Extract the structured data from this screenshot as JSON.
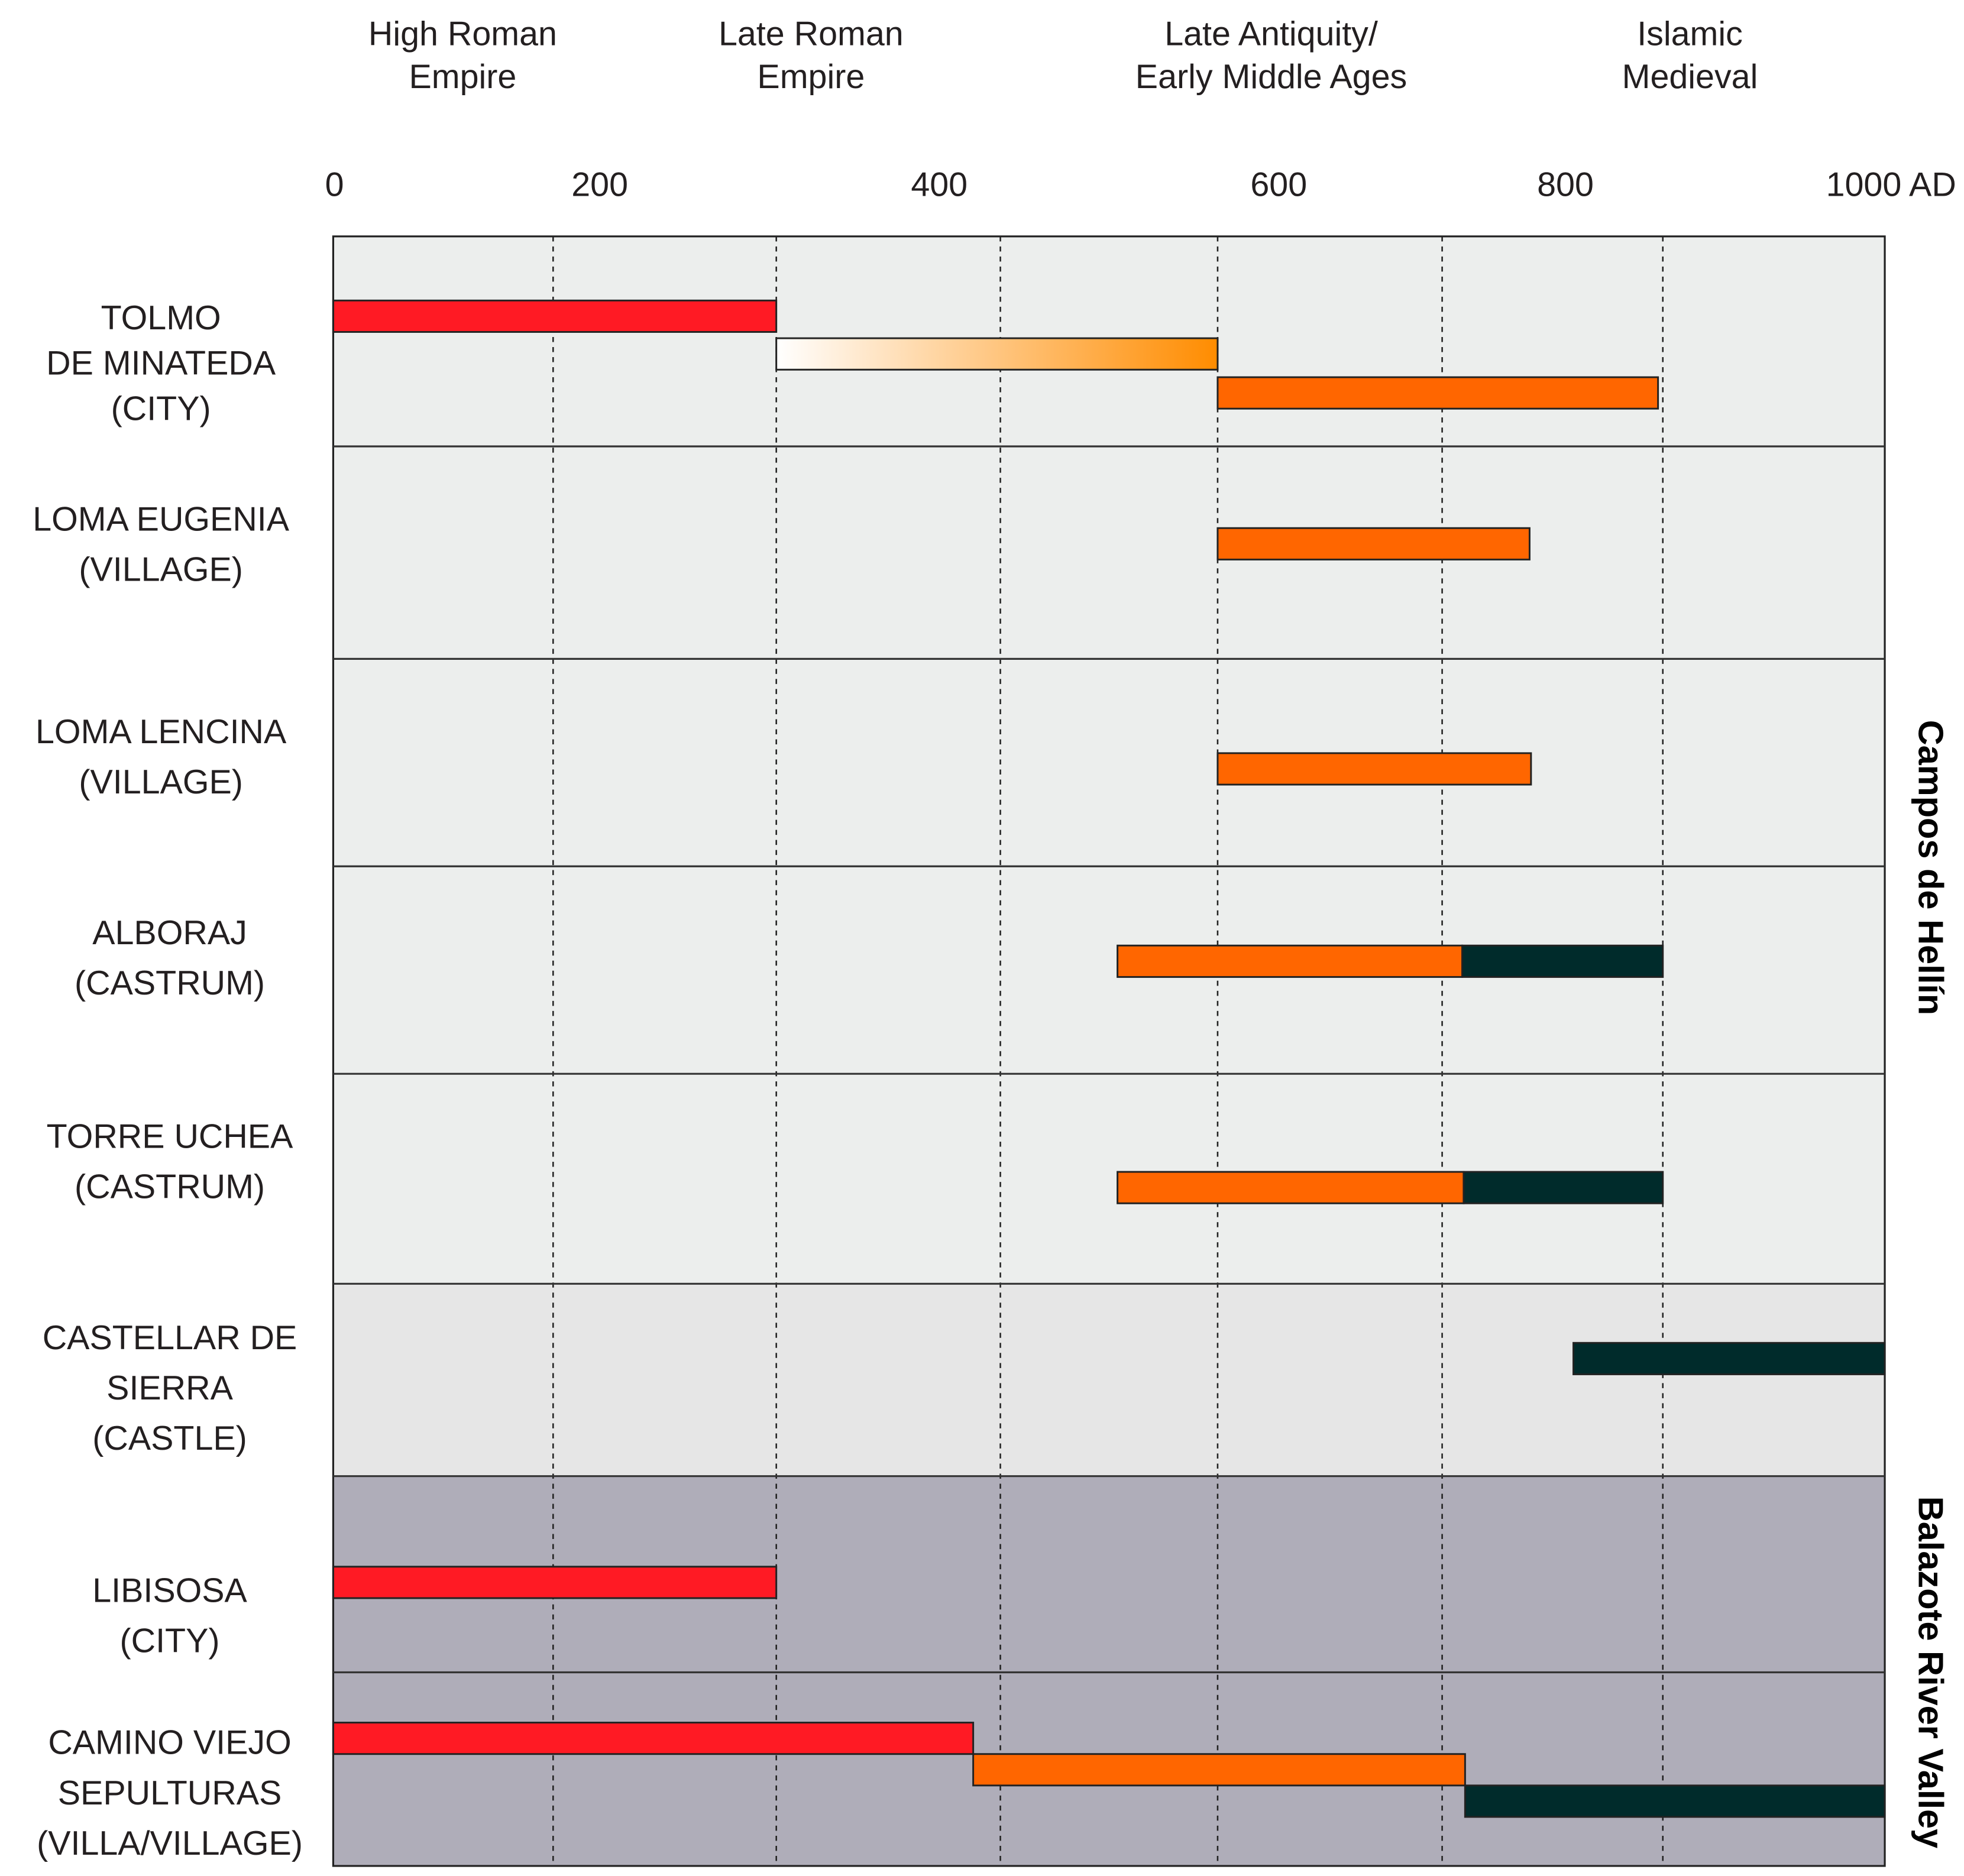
{
  "chart_data": {
    "type": "timeline",
    "title": "",
    "xlabel": "",
    "x_unit": "AD",
    "xlim": [
      0,
      1000
    ],
    "x_ticks": [
      {
        "value": 0,
        "label": "0"
      },
      {
        "value": 200,
        "label": "200"
      },
      {
        "value": 400,
        "label": "400"
      },
      {
        "value": 600,
        "label": "600"
      },
      {
        "value": 800,
        "label": "800"
      },
      {
        "value": 1000,
        "label": "1000 AD"
      }
    ],
    "gridlines": [
      165,
      304,
      436,
      564,
      714,
      861
    ],
    "periods": [
      {
        "lines": [
          "High Roman",
          "Empire"
        ]
      },
      {
        "lines": [
          "Late Roman",
          "Empire"
        ]
      },
      {
        "lines": [
          "Late Antiquity/",
          "Early Middle Ages"
        ]
      },
      {
        "lines": [
          "Islamic",
          "Medieval"
        ]
      }
    ],
    "colors": {
      "high_roman": "#ff1a24",
      "late_roman_start": "#ffffff",
      "late_roman_end": "#ff8c00",
      "late_antiquity": "#ff6600",
      "islamic": "#002b2b",
      "bg_campos": "#eceeed",
      "bg_castellar": "#e6e6e6",
      "bg_balazote": "#afadb9"
    },
    "regions": [
      {
        "name": "Campos de Hellín"
      },
      {
        "name": "Balazote River Valley"
      }
    ],
    "sites": [
      {
        "label": [
          "TOLMO",
          "DE MINATEDA",
          "(CITY)"
        ],
        "region": 0,
        "bars": [
          {
            "start": 0,
            "end": 304,
            "period": "high_roman"
          },
          {
            "start": 304,
            "end": 564,
            "period": "late_roman"
          },
          {
            "start": 564,
            "end": 858,
            "period": "late_antiquity"
          }
        ]
      },
      {
        "label": [
          "LOMA EUGENIA",
          "(VILLAGE)"
        ],
        "region": 0,
        "bars": [
          {
            "start": 564,
            "end": 775,
            "period": "late_antiquity"
          }
        ]
      },
      {
        "label": [
          "LOMA LENCINA",
          "(VILLAGE)"
        ],
        "region": 0,
        "bars": [
          {
            "start": 564,
            "end": 776,
            "period": "late_antiquity"
          }
        ]
      },
      {
        "label": [
          "ALBORAJ",
          "(CASTRUM)"
        ],
        "region": 0,
        "bars": [
          {
            "start": 505,
            "end": 728,
            "period": "late_antiquity"
          },
          {
            "start": 728,
            "end": 861,
            "period": "islamic"
          }
        ]
      },
      {
        "label": [
          "TORRE UCHEA",
          "(CASTRUM)"
        ],
        "region": 0,
        "bars": [
          {
            "start": 505,
            "end": 729,
            "period": "late_antiquity"
          },
          {
            "start": 729,
            "end": 861,
            "period": "islamic"
          }
        ]
      },
      {
        "label": [
          "CASTELLAR DE",
          "SIERRA",
          "(CASTLE)"
        ],
        "region": 0,
        "bars": [
          {
            "start": 805,
            "end": 1000,
            "period": "islamic"
          }
        ]
      },
      {
        "label": [
          "LIBISOSA",
          "(CITY)"
        ],
        "region": 1,
        "bars": [
          {
            "start": 0,
            "end": 304,
            "period": "high_roman"
          }
        ]
      },
      {
        "label": [
          "CAMINO VIEJO",
          "SEPULTURAS",
          "(VILLA/VILLAGE)"
        ],
        "region": 1,
        "bars": [
          {
            "start": 0,
            "end": 420,
            "period": "high_roman"
          },
          {
            "start": 420,
            "end": 730,
            "period": "late_antiquity"
          },
          {
            "start": 730,
            "end": 1000,
            "period": "islamic"
          }
        ]
      }
    ]
  }
}
